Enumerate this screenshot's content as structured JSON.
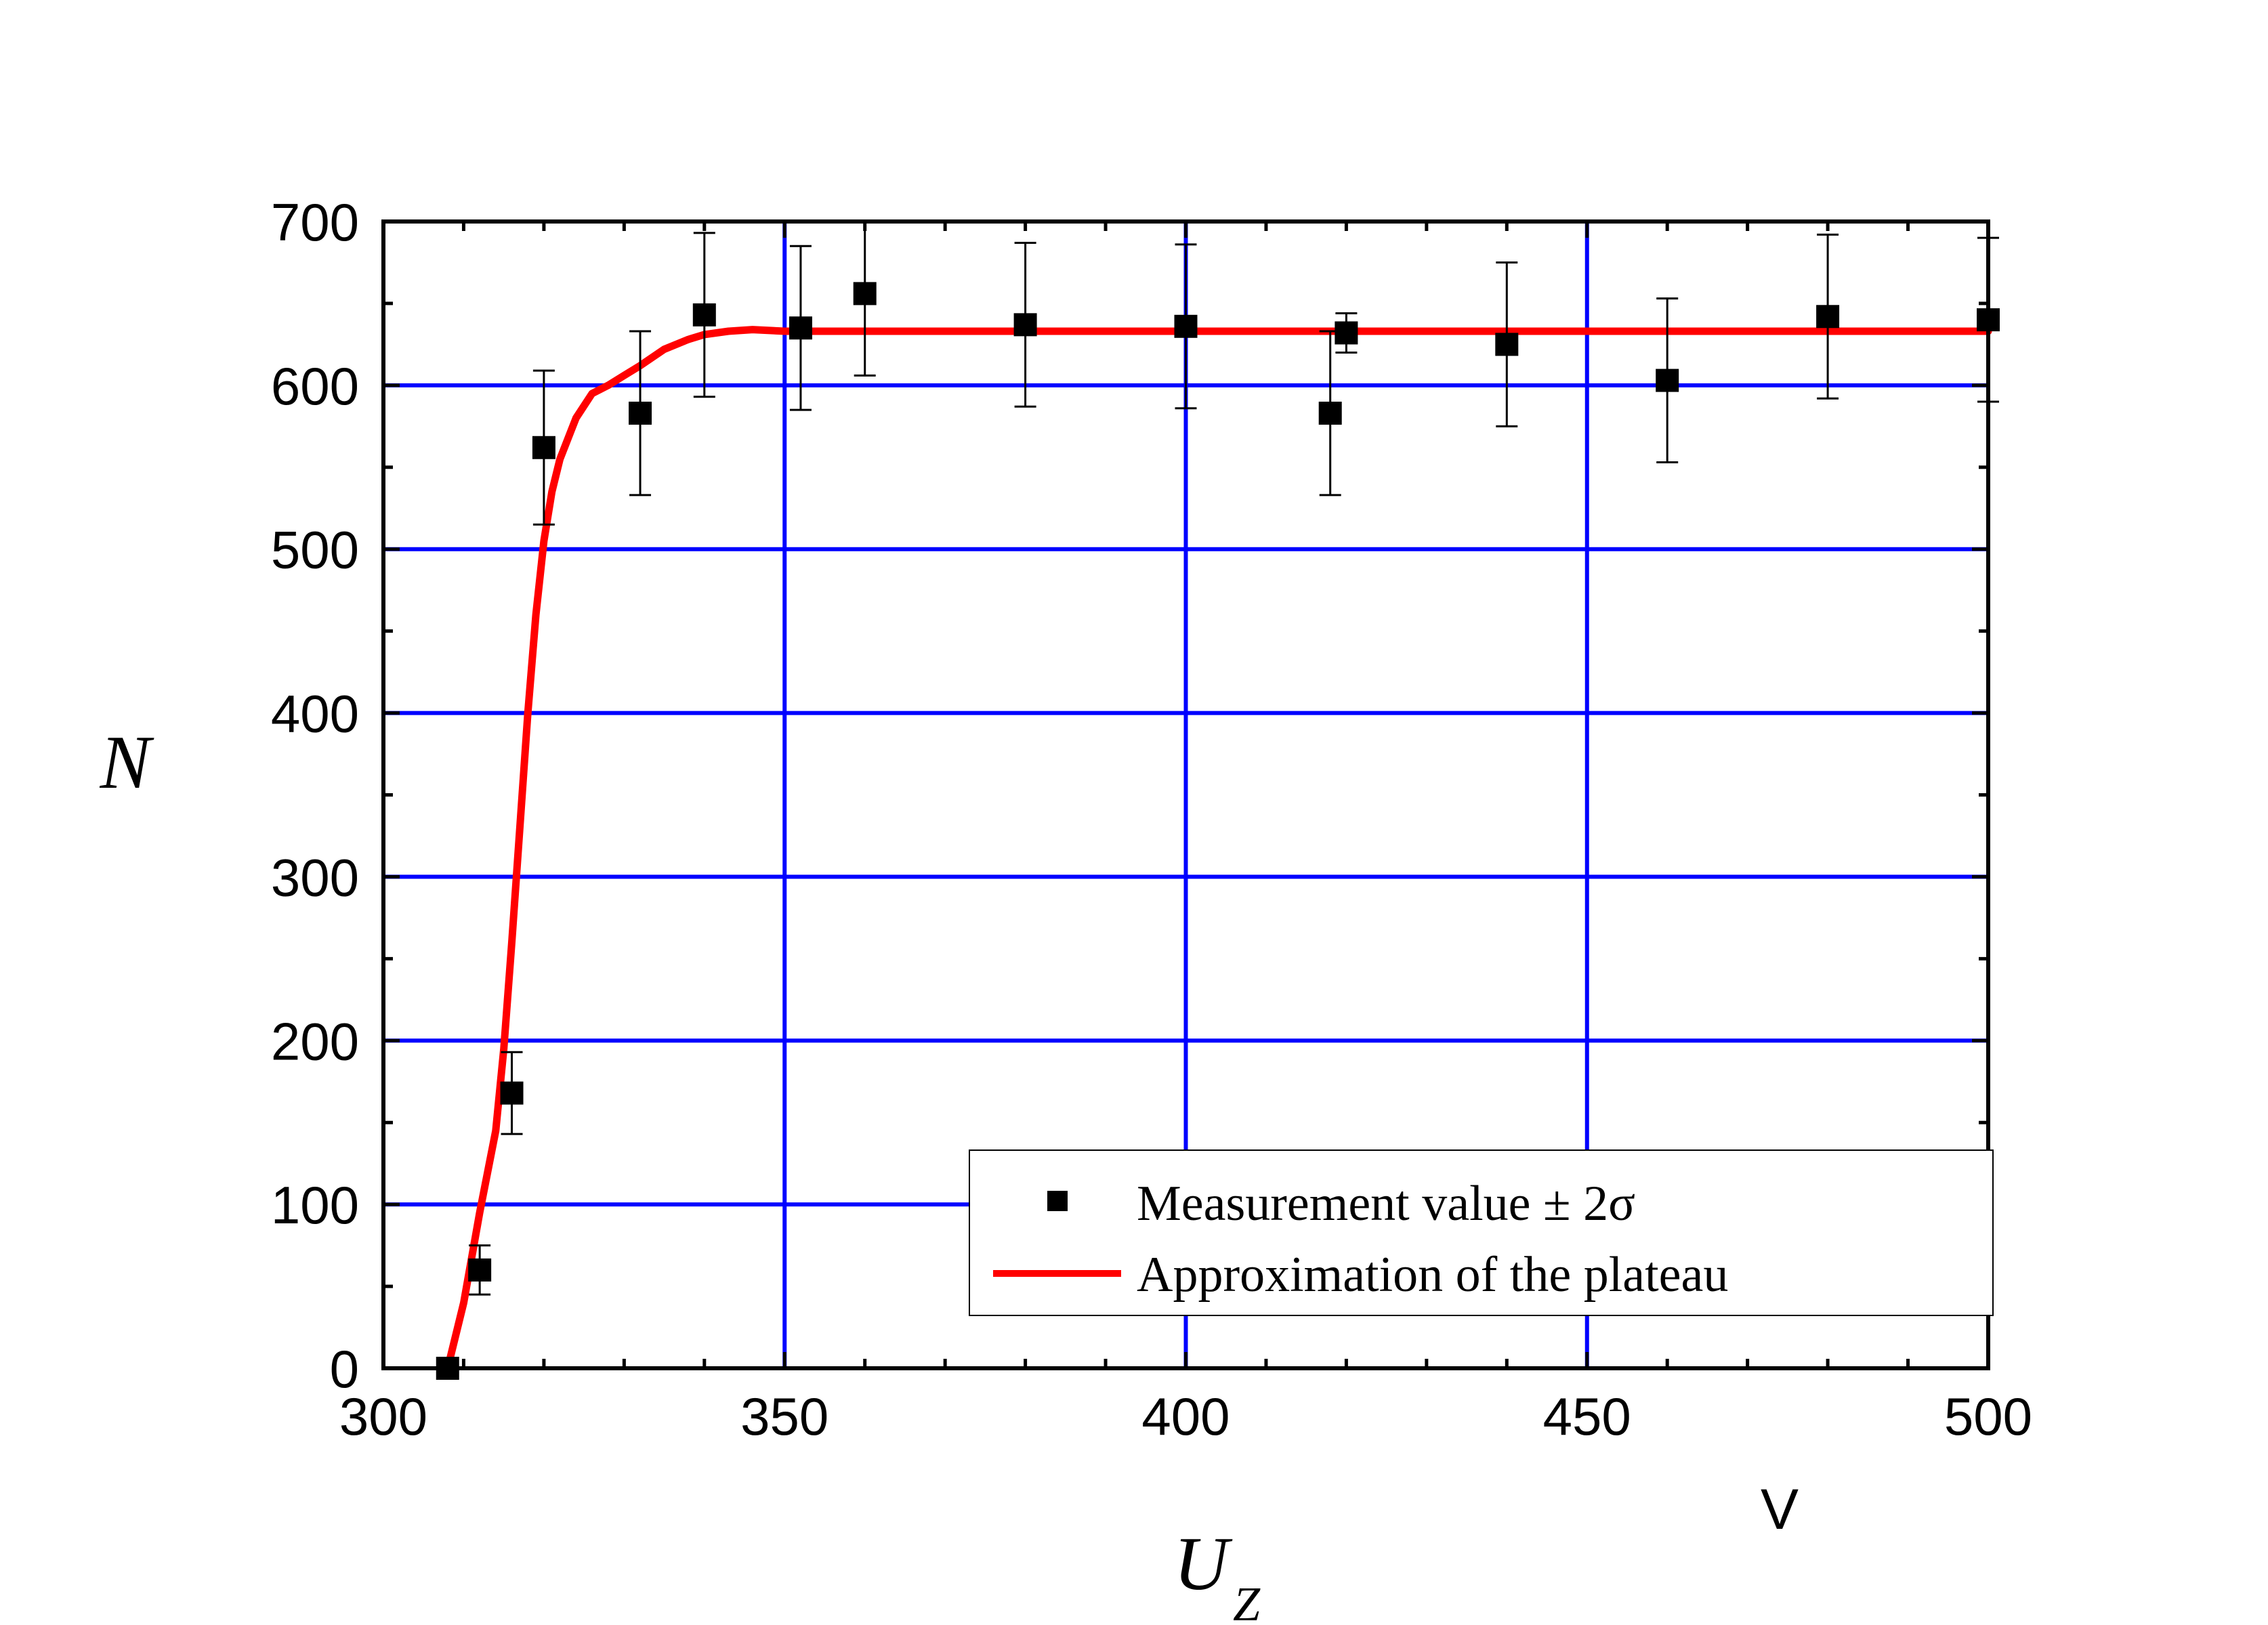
{
  "chart_data": {
    "type": "scatter",
    "xlabel": "U",
    "xlabel_sub": "Z",
    "xunit": "V",
    "ylabel": "N",
    "xlim": [
      300,
      500
    ],
    "ylim": [
      0,
      700
    ],
    "xticks": [
      300,
      350,
      400,
      450,
      500
    ],
    "yticks": [
      0,
      100,
      200,
      300,
      400,
      500,
      600,
      700
    ],
    "grid": true,
    "grid_color": "#0000ff",
    "legend_position": "bottom-right",
    "series": [
      {
        "name": "Measurement value ± 2σ",
        "kind": "scatter",
        "marker": "square",
        "color": "#000000",
        "x": [
          308,
          312,
          316,
          320,
          332,
          340,
          352,
          360,
          380,
          400,
          418,
          420,
          440,
          460,
          480,
          500
        ],
        "y": [
          0,
          60,
          168,
          562,
          583,
          643,
          635,
          656,
          637,
          636,
          583,
          632,
          625,
          603,
          642,
          640
        ],
        "err": [
          0,
          15,
          25,
          47,
          50,
          50,
          50,
          50,
          50,
          50,
          50,
          12,
          50,
          50,
          50,
          50
        ]
      },
      {
        "name": "Approximation of the plateau",
        "kind": "line",
        "color": "#ff0000",
        "x": [
          308,
          310,
          312,
          314,
          315,
          316,
          317,
          318,
          319,
          320,
          321,
          322,
          324,
          326,
          328,
          330,
          332,
          335,
          338,
          340,
          343,
          346,
          350,
          360,
          400,
          450,
          500
        ],
        "y": [
          0,
          40,
          95,
          145,
          195,
          260,
          330,
          400,
          460,
          505,
          535,
          555,
          580,
          595,
          600,
          606,
          612,
          622,
          628,
          631,
          633,
          634,
          633,
          633,
          633,
          633,
          633
        ]
      }
    ]
  }
}
